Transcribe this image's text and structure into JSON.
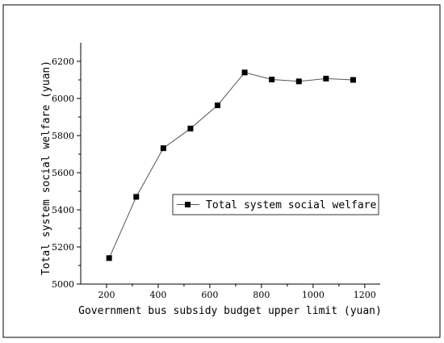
{
  "chart_data": {
    "type": "line",
    "title": "",
    "xlabel": "Government bus subsidy budget upper limit (yuan)",
    "ylabel": "Total system social welfare (yuan)",
    "xlim": [
      100,
      1260
    ],
    "ylim": [
      5000,
      6300
    ],
    "xticks": [
      200,
      400,
      600,
      800,
      1000,
      1200
    ],
    "yticks": [
      5000,
      5200,
      5400,
      5600,
      5800,
      6000,
      6200
    ],
    "grid": false,
    "legend_position": "center-right",
    "series": [
      {
        "name": "Total system social welfare",
        "color": "#000000",
        "marker": "square",
        "x": [
          210,
          315,
          420,
          525,
          630,
          735,
          840,
          945,
          1050,
          1155
        ],
        "y": [
          5140,
          5470,
          5732,
          5838,
          5963,
          6140,
          6102,
          6092,
          6107,
          6100
        ]
      }
    ]
  }
}
